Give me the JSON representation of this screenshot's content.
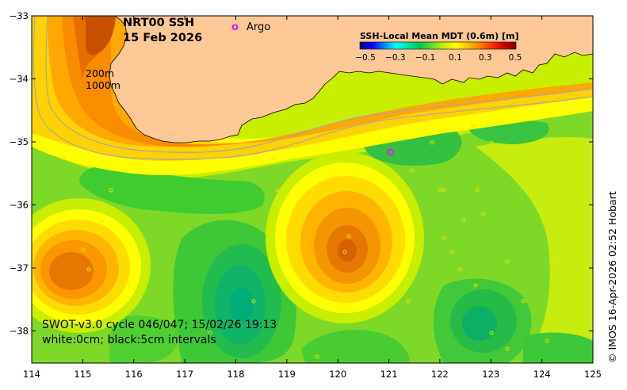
{
  "map": {
    "title_line1": "NRT00 SSH",
    "title_line2": "15 Feb 2026",
    "argo_marker": "o",
    "argo_label": "Argo",
    "argo_marker_color": "#e61ee6",
    "contour_label_200": "200m",
    "contour_label_1000": "1000m",
    "colorbar": {
      "title": "SSH-Local Mean MDT (0.6m) [m]",
      "ticks": [
        "−0.5",
        "−0.3",
        "−0.1",
        "0.1",
        "0.3",
        "0.5"
      ],
      "colors": [
        "#00007f",
        "#0000ff",
        "#0080ff",
        "#00ffff",
        "#00e5a0",
        "#00c850",
        "#60dd30",
        "#c8f000",
        "#ffff00",
        "#ffc000",
        "#ff8000",
        "#ff3000",
        "#d00000",
        "#800000"
      ]
    },
    "x_ticks": [
      "114",
      "115",
      "116",
      "117",
      "118",
      "119",
      "120",
      "121",
      "122",
      "123",
      "124",
      "125"
    ],
    "y_ticks": [
      "−33",
      "−34",
      "−35",
      "−36",
      "−37",
      "−38"
    ],
    "info_line1": "SWOT-v3.0 cycle 046/047; 15/02/26 19:13",
    "info_line2": "white:0cm; black:5cm intervals",
    "side_credit": "© IMOS 16-Apr-2026 02:52 Hobart",
    "land_color": "#fcc896"
  }
}
